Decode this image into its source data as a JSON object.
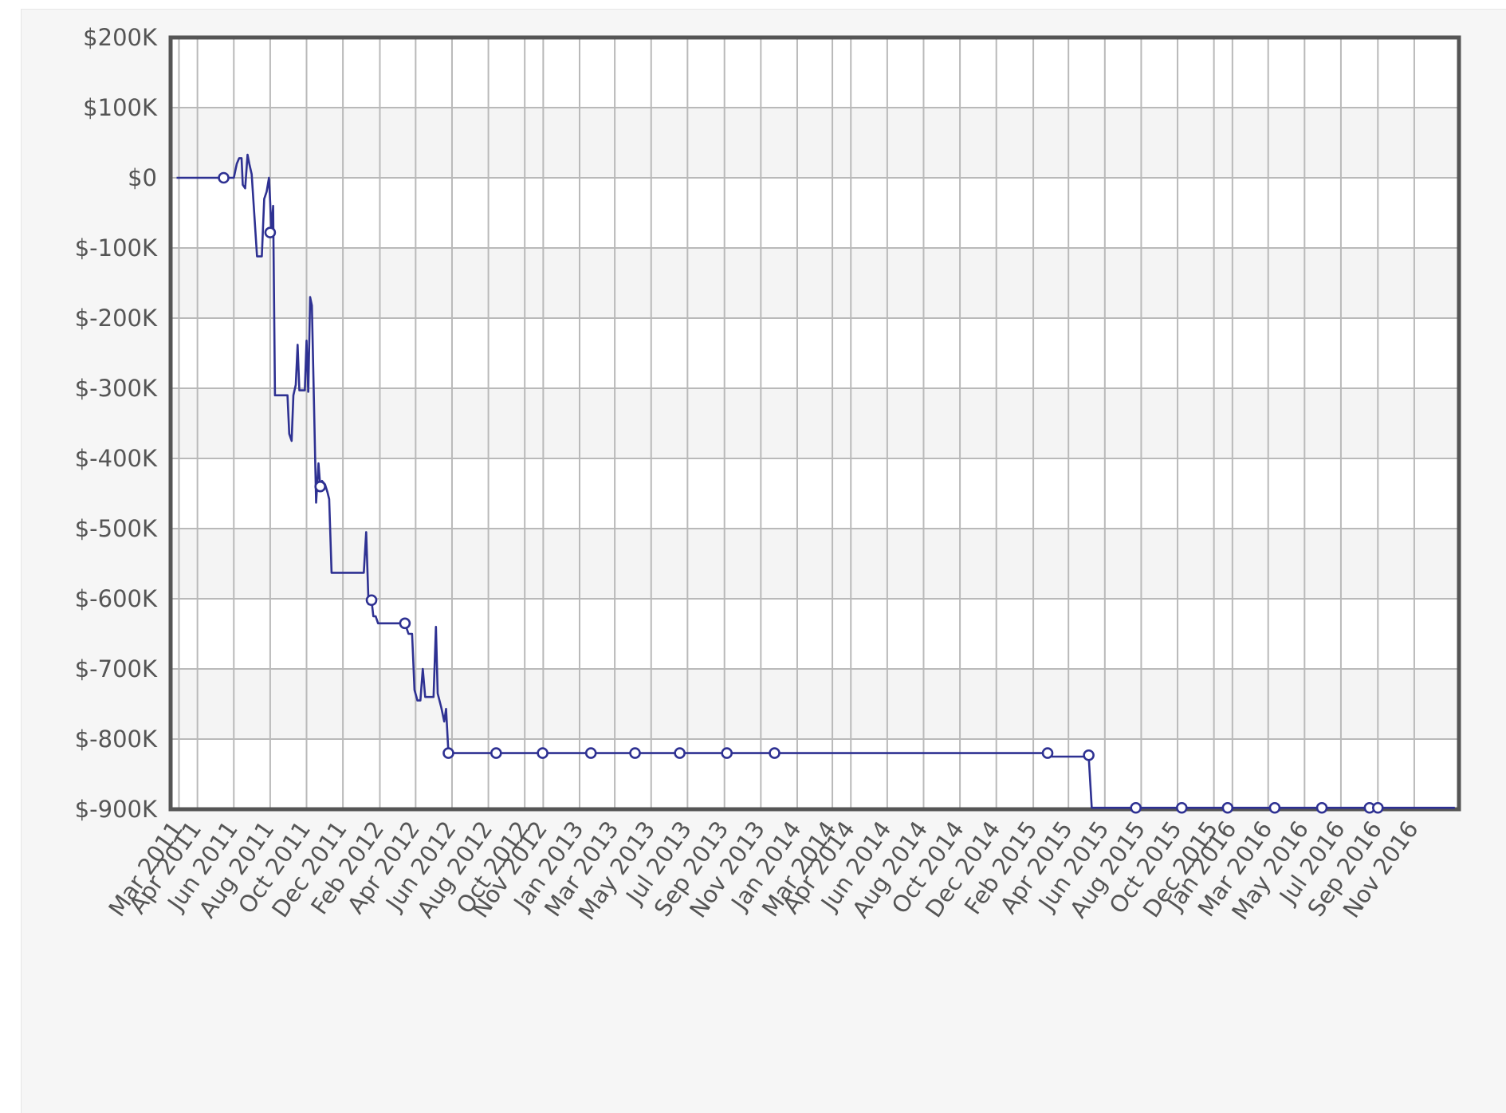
{
  "chart_data": {
    "type": "line",
    "title": "",
    "xlabel": "",
    "ylabel": "",
    "ylim": [
      -900000,
      200000
    ],
    "y_ticks": [
      200000,
      100000,
      0,
      -100000,
      -200000,
      -300000,
      -400000,
      -500000,
      -600000,
      -700000,
      -800000,
      -900000
    ],
    "y_tick_labels": [
      "$200K",
      "$100K",
      "$0",
      "$-100K",
      "$-200K",
      "$-300K",
      "$-400K",
      "$-500K",
      "$-600K",
      "$-700K",
      "$-800K",
      "$-900K"
    ],
    "xlim": [
      "2011-02-15",
      "2017-01-15"
    ],
    "x_tick_labels": [
      {
        "date": "2011-03-01",
        "label": "Mar 2011"
      },
      {
        "date": "2011-04-01",
        "label": "Apr 2011"
      },
      {
        "date": "2011-06-01",
        "label": "Jun 2011"
      },
      {
        "date": "2011-08-01",
        "label": "Aug 2011"
      },
      {
        "date": "2011-10-01",
        "label": "Oct 2011"
      },
      {
        "date": "2011-12-01",
        "label": "Dec 2011"
      },
      {
        "date": "2012-02-01",
        "label": "Feb 2012"
      },
      {
        "date": "2012-04-01",
        "label": "Apr 2012"
      },
      {
        "date": "2012-06-01",
        "label": "Jun 2012"
      },
      {
        "date": "2012-08-01",
        "label": "Aug 2012"
      },
      {
        "date": "2012-10-01",
        "label": "Oct 2012"
      },
      {
        "date": "2012-11-01",
        "label": "Nov 2012"
      },
      {
        "date": "2013-01-01",
        "label": "Jan 2013"
      },
      {
        "date": "2013-03-01",
        "label": "Mar 2013"
      },
      {
        "date": "2013-05-01",
        "label": "May 2013"
      },
      {
        "date": "2013-07-01",
        "label": "Jul 2013"
      },
      {
        "date": "2013-09-01",
        "label": "Sep 2013"
      },
      {
        "date": "2013-11-01",
        "label": "Nov 2013"
      },
      {
        "date": "2014-01-01",
        "label": "Jan 2014"
      },
      {
        "date": "2014-03-01",
        "label": "Mar 2014"
      },
      {
        "date": "2014-04-01",
        "label": "Apr 2014"
      },
      {
        "date": "2014-06-01",
        "label": "Jun 2014"
      },
      {
        "date": "2014-08-01",
        "label": "Aug 2014"
      },
      {
        "date": "2014-10-01",
        "label": "Oct 2014"
      },
      {
        "date": "2014-12-01",
        "label": "Dec 2014"
      },
      {
        "date": "2015-02-01",
        "label": "Feb 2015"
      },
      {
        "date": "2015-04-01",
        "label": "Apr 2015"
      },
      {
        "date": "2015-06-01",
        "label": "Jun 2015"
      },
      {
        "date": "2015-08-01",
        "label": "Aug 2015"
      },
      {
        "date": "2015-10-01",
        "label": "Oct 2015"
      },
      {
        "date": "2015-12-01",
        "label": "Dec 2015"
      },
      {
        "date": "2016-01-01",
        "label": "Jan 2016"
      },
      {
        "date": "2016-03-01",
        "label": "Mar 2016"
      },
      {
        "date": "2016-05-01",
        "label": "May 2016"
      },
      {
        "date": "2016-07-01",
        "label": "Jul 2016"
      },
      {
        "date": "2016-09-01",
        "label": "Sep 2016"
      },
      {
        "date": "2016-11-01",
        "label": "Nov 2016"
      }
    ],
    "grid": true,
    "alternating_bands": true,
    "series": [
      {
        "color": "#2e3192",
        "line": [
          {
            "x": "2011-02-25",
            "y": 0
          },
          {
            "x": "2011-05-15",
            "y": 0
          },
          {
            "x": "2011-06-01",
            "y": 0
          },
          {
            "x": "2011-06-06",
            "y": 20000
          },
          {
            "x": "2011-06-10",
            "y": 28000
          },
          {
            "x": "2011-06-14",
            "y": 28000
          },
          {
            "x": "2011-06-16",
            "y": -10000
          },
          {
            "x": "2011-06-20",
            "y": -15000
          },
          {
            "x": "2011-06-24",
            "y": 33000
          },
          {
            "x": "2011-06-27",
            "y": 20000
          },
          {
            "x": "2011-07-01",
            "y": 5000
          },
          {
            "x": "2011-07-10",
            "y": -112000
          },
          {
            "x": "2011-07-18",
            "y": -112000
          },
          {
            "x": "2011-07-22",
            "y": -30000
          },
          {
            "x": "2011-07-26",
            "y": -20000
          },
          {
            "x": "2011-07-30",
            "y": 0
          },
          {
            "x": "2011-08-01",
            "y": -35000
          },
          {
            "x": "2011-08-03",
            "y": -78000
          },
          {
            "x": "2011-08-06",
            "y": -40000
          },
          {
            "x": "2011-08-09",
            "y": -310000
          },
          {
            "x": "2011-08-30",
            "y": -310000
          },
          {
            "x": "2011-09-02",
            "y": -365000
          },
          {
            "x": "2011-09-06",
            "y": -375000
          },
          {
            "x": "2011-09-09",
            "y": -310000
          },
          {
            "x": "2011-09-13",
            "y": -295000
          },
          {
            "x": "2011-09-16",
            "y": -238000
          },
          {
            "x": "2011-09-19",
            "y": -303000
          },
          {
            "x": "2011-09-28",
            "y": -303000
          },
          {
            "x": "2011-10-01",
            "y": -232000
          },
          {
            "x": "2011-10-04",
            "y": -305000
          },
          {
            "x": "2011-10-07",
            "y": -170000
          },
          {
            "x": "2011-10-10",
            "y": -182000
          },
          {
            "x": "2011-10-17",
            "y": -463000
          },
          {
            "x": "2011-10-21",
            "y": -407000
          },
          {
            "x": "2011-10-24",
            "y": -440000
          },
          {
            "x": "2011-10-27",
            "y": -432000
          },
          {
            "x": "2011-11-01",
            "y": -437000
          },
          {
            "x": "2011-11-05",
            "y": -448000
          },
          {
            "x": "2011-11-08",
            "y": -458000
          },
          {
            "x": "2011-11-12",
            "y": -563000
          },
          {
            "x": "2012-01-05",
            "y": -563000
          },
          {
            "x": "2012-01-09",
            "y": -505000
          },
          {
            "x": "2012-01-13",
            "y": -608000
          },
          {
            "x": "2012-01-18",
            "y": -602000
          },
          {
            "x": "2012-01-21",
            "y": -625000
          },
          {
            "x": "2012-01-25",
            "y": -625000
          },
          {
            "x": "2012-01-29",
            "y": -635000
          },
          {
            "x": "2012-03-14",
            "y": -635000
          },
          {
            "x": "2012-03-20",
            "y": -650000
          },
          {
            "x": "2012-03-26",
            "y": -650000
          },
          {
            "x": "2012-03-30",
            "y": -730000
          },
          {
            "x": "2012-04-04",
            "y": -745000
          },
          {
            "x": "2012-04-09",
            "y": -745000
          },
          {
            "x": "2012-04-13",
            "y": -700000
          },
          {
            "x": "2012-04-17",
            "y": -740000
          },
          {
            "x": "2012-05-01",
            "y": -740000
          },
          {
            "x": "2012-05-05",
            "y": -640000
          },
          {
            "x": "2012-05-08",
            "y": -735000
          },
          {
            "x": "2012-05-14",
            "y": -755000
          },
          {
            "x": "2012-05-19",
            "y": -775000
          },
          {
            "x": "2012-05-22",
            "y": -757000
          },
          {
            "x": "2012-05-26",
            "y": -820000
          },
          {
            "x": "2015-02-25",
            "y": -820000
          },
          {
            "x": "2015-02-28",
            "y": -815000
          },
          {
            "x": "2015-03-04",
            "y": -825000
          },
          {
            "x": "2015-05-05",
            "y": -825000
          },
          {
            "x": "2015-05-10",
            "y": -898000
          },
          {
            "x": "2017-01-08",
            "y": -898000
          }
        ],
        "markers": [
          {
            "x": "2011-05-15",
            "y": 0
          },
          {
            "x": "2011-08-01",
            "y": -78000
          },
          {
            "x": "2011-10-24",
            "y": -440000
          },
          {
            "x": "2012-01-18",
            "y": -602000
          },
          {
            "x": "2012-03-14",
            "y": -635000
          },
          {
            "x": "2012-05-26",
            "y": -820000
          },
          {
            "x": "2012-08-14",
            "y": -820000
          },
          {
            "x": "2012-10-31",
            "y": -820000
          },
          {
            "x": "2013-01-20",
            "y": -820000
          },
          {
            "x": "2013-04-04",
            "y": -820000
          },
          {
            "x": "2013-06-18",
            "y": -820000
          },
          {
            "x": "2013-09-05",
            "y": -820000
          },
          {
            "x": "2013-11-24",
            "y": -820000
          },
          {
            "x": "2015-02-25",
            "y": -820000
          },
          {
            "x": "2015-05-05",
            "y": -823000
          },
          {
            "x": "2015-07-23",
            "y": -898000
          },
          {
            "x": "2015-10-08",
            "y": -898000
          },
          {
            "x": "2015-12-24",
            "y": -898000
          },
          {
            "x": "2016-03-12",
            "y": -898000
          },
          {
            "x": "2016-05-30",
            "y": -898000
          },
          {
            "x": "2016-08-18",
            "y": -898000
          },
          {
            "x": "2016-09-01",
            "y": -898000
          }
        ]
      }
    ]
  }
}
